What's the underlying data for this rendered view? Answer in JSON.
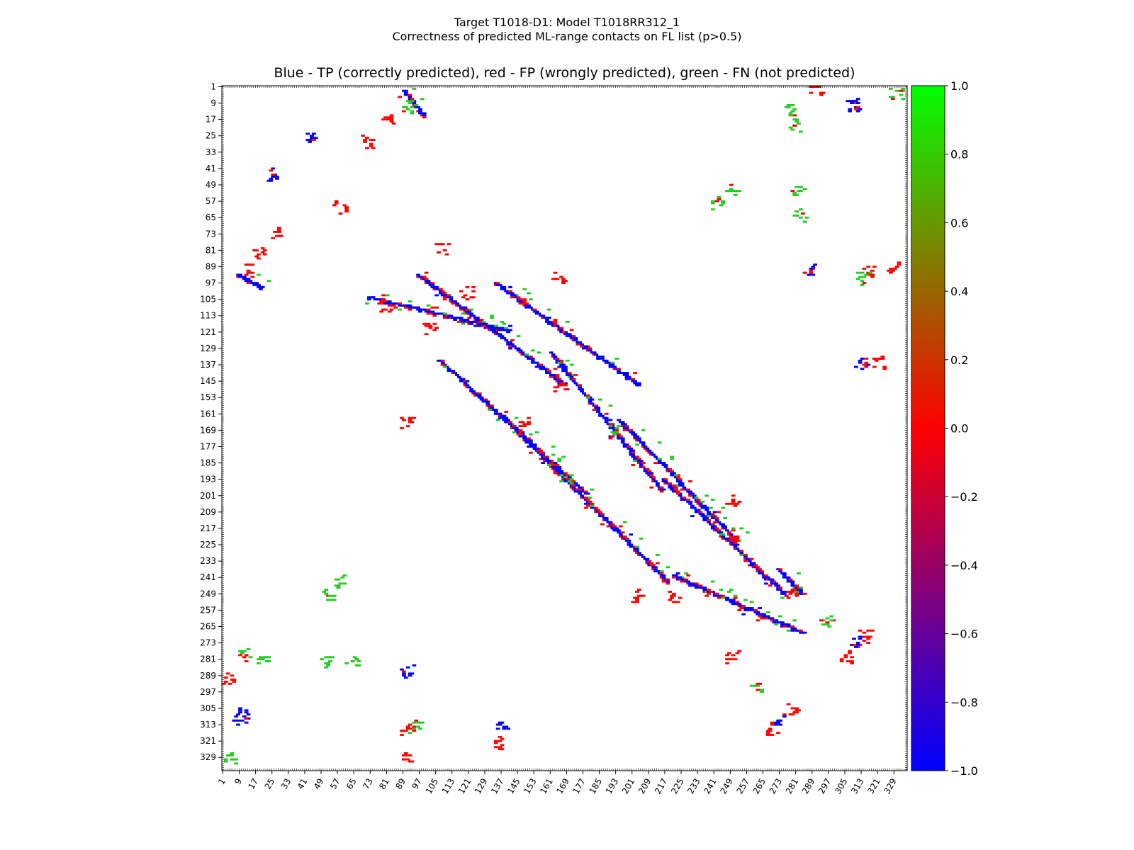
{
  "figure": {
    "title_line1": "Target T1018-D1: Model T1018RR312_1",
    "title_line2": "Correctness of predicted ML-range contacts on FL list (p>0.5)",
    "axes_title": "Blue - TP (correctly predicted), red - FP (wrongly predicted), green - FN (not predicted)"
  },
  "chart_data": {
    "type": "heatmap",
    "title": "Blue - TP (correctly predicted), red - FP (wrongly predicted), green - FN (not predicted)",
    "xlim": [
      1,
      335
    ],
    "ylim": [
      1,
      335
    ],
    "y_inverted": true,
    "grid": false,
    "x_tick_labels": [
      "1",
      "9",
      "17",
      "25",
      "33",
      "41",
      "49",
      "57",
      "65",
      "73",
      "81",
      "89",
      "97",
      "105",
      "113",
      "121",
      "129",
      "137",
      "145",
      "153",
      "161",
      "169",
      "177",
      "185",
      "193",
      "201",
      "209",
      "217",
      "225",
      "233",
      "241",
      "249",
      "257",
      "265",
      "273",
      "281",
      "289",
      "297",
      "305",
      "313",
      "321",
      "329"
    ],
    "y_tick_labels": [
      "1",
      "9",
      "17",
      "25",
      "33",
      "41",
      "49",
      "57",
      "65",
      "73",
      "81",
      "89",
      "97",
      "105",
      "113",
      "121",
      "129",
      "137",
      "145",
      "153",
      "161",
      "169",
      "177",
      "185",
      "193",
      "201",
      "209",
      "217",
      "225",
      "233",
      "241",
      "249",
      "257",
      "265",
      "273",
      "281",
      "289",
      "297",
      "305",
      "313",
      "321",
      "329"
    ],
    "colorbar": {
      "min": -1.0,
      "max": 1.0,
      "tick_labels": [
        "1.0",
        "0.8",
        "0.6",
        "0.4",
        "0.2",
        "0.0",
        "−0.2",
        "−0.4",
        "−0.6",
        "−0.8",
        "−1.0"
      ],
      "colors": {
        "low": "#0000ff",
        "mid": "#ff0000",
        "high": "#00ff00"
      }
    },
    "categories": {
      "TP": {
        "value": -1.0,
        "color": "#0000ff"
      },
      "FP": {
        "value": 0.0,
        "color": "#ff0000"
      },
      "FN": {
        "value": 1.0,
        "color": "#22cc22"
      }
    },
    "diagonal_bands": [
      {
        "from": [
          96,
          93
        ],
        "to": [
          167,
          146
        ],
        "kind": "TP"
      },
      {
        "from": [
          72,
          104
        ],
        "to": [
          140,
          120
        ],
        "kind": "TP"
      },
      {
        "from": [
          134,
          97
        ],
        "to": [
          204,
          147
        ],
        "kind": "TP"
      },
      {
        "from": [
          107,
          135
        ],
        "to": [
          178,
          200
        ],
        "kind": "TP"
      },
      {
        "from": [
          161,
          131
        ],
        "to": [
          215,
          198
        ],
        "kind": "TP"
      },
      {
        "from": [
          136,
          161
        ],
        "to": [
          218,
          243
        ],
        "kind": "TP"
      },
      {
        "from": [
          194,
          164
        ],
        "to": [
          251,
          222
        ],
        "kind": "TP"
      },
      {
        "from": [
          216,
          193
        ],
        "to": [
          276,
          250
        ],
        "kind": "TP"
      },
      {
        "from": [
          221,
          240
        ],
        "to": [
          284,
          268
        ],
        "kind": "TP"
      },
      {
        "from": [
          272,
          237
        ],
        "to": [
          284,
          249
        ],
        "kind": "TP"
      },
      {
        "from": [
          8,
          93
        ],
        "to": [
          19,
          99
        ],
        "kind": "TP"
      },
      {
        "from": [
          89,
          3
        ],
        "to": [
          99,
          15
        ],
        "kind": "TP"
      }
    ],
    "clusters": [
      {
        "x": 13,
        "y": 91,
        "kind": "FP"
      },
      {
        "x": 92,
        "y": 12,
        "kind": "FN"
      },
      {
        "x": 91,
        "y": 165,
        "kind": "FP"
      },
      {
        "x": 165,
        "y": 95,
        "kind": "FP"
      },
      {
        "x": 287,
        "y": 91,
        "kind": "TP"
      },
      {
        "x": 91,
        "y": 287,
        "kind": "TP"
      },
      {
        "x": 279,
        "y": 249,
        "kind": "FP"
      },
      {
        "x": 250,
        "y": 280,
        "kind": "FP"
      },
      {
        "x": 251,
        "y": 221,
        "kind": "FP"
      },
      {
        "x": 221,
        "y": 251,
        "kind": "FP"
      },
      {
        "x": 280,
        "y": 20,
        "kind": "FN"
      },
      {
        "x": 20,
        "y": 280,
        "kind": "FN"
      },
      {
        "x": 52,
        "y": 250,
        "kind": "FN"
      },
      {
        "x": 250,
        "y": 52,
        "kind": "FN"
      },
      {
        "x": 282,
        "y": 51,
        "kind": "FN"
      },
      {
        "x": 51,
        "y": 282,
        "kind": "FN"
      },
      {
        "x": 243,
        "y": 58,
        "kind": "FN"
      },
      {
        "x": 58,
        "y": 243,
        "kind": "FN"
      },
      {
        "x": 90,
        "y": 328,
        "kind": "FP"
      },
      {
        "x": 328,
        "y": 90,
        "kind": "FP"
      },
      {
        "x": 136,
        "y": 322,
        "kind": "FP"
      },
      {
        "x": 322,
        "y": 136,
        "kind": "FP"
      },
      {
        "x": 5,
        "y": 330,
        "kind": "FN"
      },
      {
        "x": 330,
        "y": 5,
        "kind": "FN"
      },
      {
        "x": 9,
        "y": 308,
        "kind": "TP"
      },
      {
        "x": 308,
        "y": 9,
        "kind": "TP"
      },
      {
        "x": 12,
        "y": 279,
        "kind": "FN"
      },
      {
        "x": 279,
        "y": 12,
        "kind": "FN"
      },
      {
        "x": 58,
        "y": 60,
        "kind": "FP"
      },
      {
        "x": 25,
        "y": 44,
        "kind": "TP"
      },
      {
        "x": 44,
        "y": 25,
        "kind": "TP"
      },
      {
        "x": 72,
        "y": 28,
        "kind": "FP"
      },
      {
        "x": 28,
        "y": 72,
        "kind": "FP"
      },
      {
        "x": 82,
        "y": 18,
        "kind": "FP"
      },
      {
        "x": 18,
        "y": 82,
        "kind": "FP"
      },
      {
        "x": 310,
        "y": 10,
        "kind": "TP"
      },
      {
        "x": 10,
        "y": 310,
        "kind": "TP"
      },
      {
        "x": 316,
        "y": 91,
        "kind": "FP"
      },
      {
        "x": 91,
        "y": 316,
        "kind": "FP"
      },
      {
        "x": 306,
        "y": 280,
        "kind": "FP"
      },
      {
        "x": 280,
        "y": 306,
        "kind": "FP"
      },
      {
        "x": 313,
        "y": 137,
        "kind": "TP"
      },
      {
        "x": 137,
        "y": 313,
        "kind": "TP"
      },
      {
        "x": 296,
        "y": 262,
        "kind": "FN"
      },
      {
        "x": 262,
        "y": 296,
        "kind": "FN"
      },
      {
        "x": 193,
        "y": 169,
        "kind": "FN"
      },
      {
        "x": 169,
        "y": 193,
        "kind": "FN"
      },
      {
        "x": 273,
        "y": 310,
        "kind": "TP"
      },
      {
        "x": 310,
        "y": 273,
        "kind": "TP"
      },
      {
        "x": 315,
        "y": 270,
        "kind": "FP"
      },
      {
        "x": 270,
        "y": 315,
        "kind": "FP"
      },
      {
        "x": 120,
        "y": 102,
        "kind": "FP"
      },
      {
        "x": 102,
        "y": 120,
        "kind": "FP"
      },
      {
        "x": 108,
        "y": 80,
        "kind": "FP"
      },
      {
        "x": 80,
        "y": 108,
        "kind": "FP"
      },
      {
        "x": 148,
        "y": 166,
        "kind": "FP"
      },
      {
        "x": 166,
        "y": 148,
        "kind": "FP"
      },
      {
        "x": 204,
        "y": 250,
        "kind": "FP"
      },
      {
        "x": 250,
        "y": 204,
        "kind": "FP"
      },
      {
        "x": 314,
        "y": 95,
        "kind": "FN"
      },
      {
        "x": 95,
        "y": 314,
        "kind": "FN"
      },
      {
        "x": 64,
        "y": 283,
        "kind": "FN"
      },
      {
        "x": 283,
        "y": 64,
        "kind": "FN"
      },
      {
        "x": 3,
        "y": 291,
        "kind": "FP"
      },
      {
        "x": 291,
        "y": 3,
        "kind": "FP"
      }
    ]
  }
}
